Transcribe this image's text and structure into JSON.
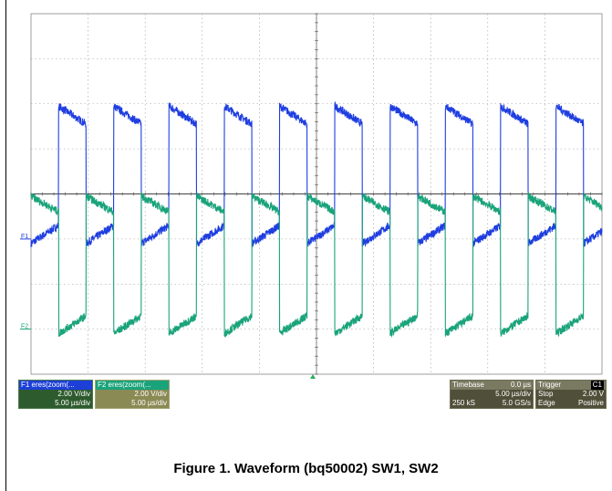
{
  "chart_data": {
    "type": "line",
    "title": "",
    "xlabel": "",
    "ylabel": "",
    "grid": true,
    "timebase_per_div_us": 5.0,
    "time_divisions": 10,
    "volts_per_div": 2.0,
    "x_unit": "µs",
    "xlim": [
      -25,
      25
    ],
    "period_us": 4.84,
    "duty_high": 0.5,
    "series": [
      {
        "name": "F1",
        "color": "#1f3ee0",
        "offset_div": -1.0,
        "high_start_V": 5.9,
        "high_end_V": 5.1,
        "low_start_V": -0.2,
        "low_end_V": 0.6,
        "pulse_starts_us": [
          -22.6,
          -17.76,
          -12.92,
          -8.08,
          -3.24,
          1.6,
          6.44,
          11.28,
          16.12,
          20.96
        ]
      },
      {
        "name": "F2",
        "color": "#1aa37a",
        "offset_div": -3.0,
        "high_start_V": 5.9,
        "high_end_V": 5.2,
        "low_start_V": -0.2,
        "low_end_V": 0.6,
        "pulse_starts_us": [
          -25.0,
          -20.18,
          -15.34,
          -10.5,
          -5.66,
          -0.82,
          4.02,
          8.86,
          13.7,
          18.54,
          23.38
        ]
      }
    ],
    "trace_labels": [
      "F1",
      "F2"
    ]
  },
  "panels": {
    "f1": {
      "title": "F1  eres(zoom(...",
      "vdiv": "2.00 V/div",
      "tdiv": "5.00 µs/div",
      "color": "#2e5b2e"
    },
    "f2": {
      "title": "F2  eres(zoom(...",
      "vdiv": "2.00 V/div",
      "tdiv": "5.00 µs/div",
      "color": "#8a8a55"
    },
    "timebase": {
      "label": "Timebase",
      "delay": "0.0 µs",
      "tdiv": "5.00 µs/div",
      "samples": "250 kS",
      "rate": "5.0 GS/s"
    },
    "trigger": {
      "label": "Trigger",
      "channel": "C1",
      "mode": "Stop",
      "level": "2.00 V",
      "type": "Edge",
      "slope": "Positive"
    }
  },
  "caption": "Figure 1. Waveform (bq50002) SW1, SW2"
}
